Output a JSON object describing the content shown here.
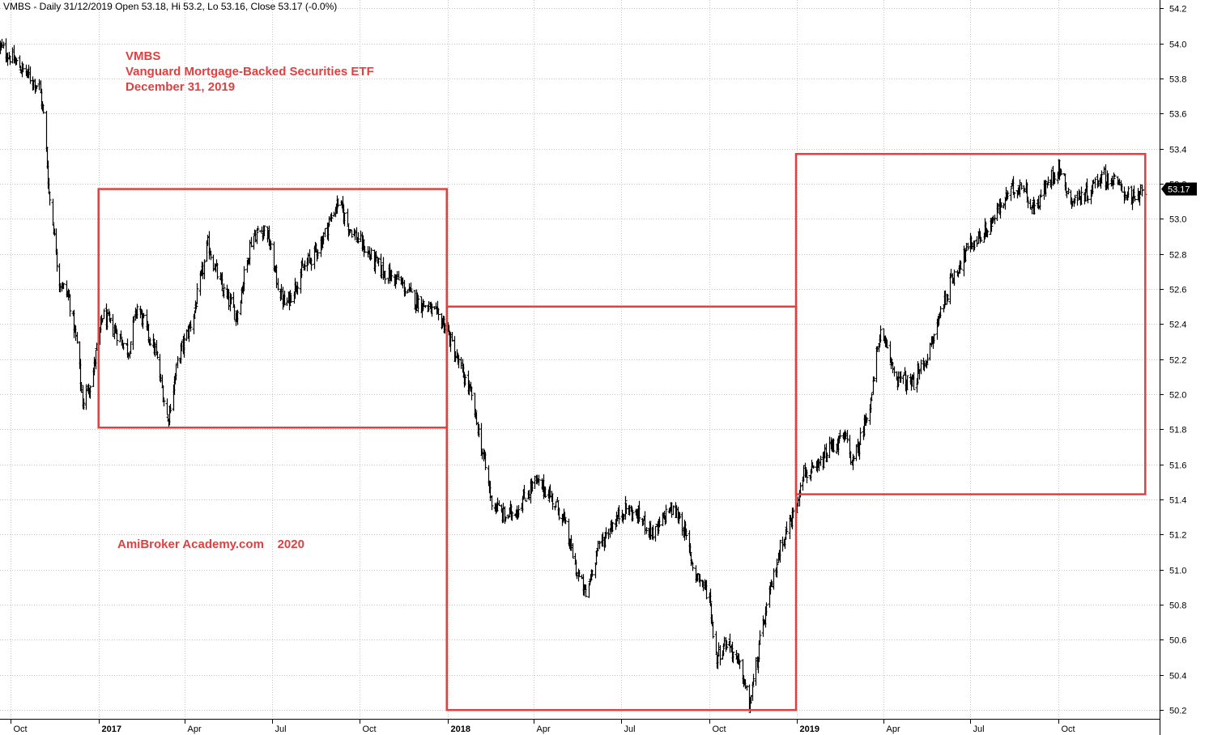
{
  "header": {
    "info": "VMBS - Daily 31/12/2019 Open 53.18, Hi 53.2, Lo 53.16, Close 53.17 (-0.0%)"
  },
  "annotations": {
    "symbol": "VMBS",
    "name": "Vanguard Mortgage-Backed Securities ETF",
    "date": "December 31, 2019",
    "watermark": "AmiBroker Academy.com    2020"
  },
  "colors": {
    "box": "#e04040",
    "annot_text": "#e04040",
    "bars": "#000000",
    "grid": "#c8c8c8",
    "last_price_bg": "#000000"
  },
  "chart_data": {
    "type": "ohlc",
    "ylim": [
      50.15,
      54.22
    ],
    "yticks": [
      "54.2",
      "54.0",
      "53.8",
      "53.6",
      "53.4",
      "53.2",
      "53.0",
      "52.8",
      "52.6",
      "52.4",
      "52.2",
      "52.0",
      "51.8",
      "51.6",
      "51.4",
      "51.2",
      "51.0",
      "50.8",
      "50.6",
      "50.4",
      "50.2"
    ],
    "xticks": [
      {
        "date": "2016-10-01",
        "label": "Oct",
        "bold": false
      },
      {
        "date": "2017-01-01",
        "label": "2017",
        "bold": true
      },
      {
        "date": "2017-04-01",
        "label": "Apr",
        "bold": false
      },
      {
        "date": "2017-07-01",
        "label": "Jul",
        "bold": false
      },
      {
        "date": "2017-10-01",
        "label": "Oct",
        "bold": false
      },
      {
        "date": "2018-01-01",
        "label": "2018",
        "bold": true
      },
      {
        "date": "2018-04-01",
        "label": "Apr",
        "bold": false
      },
      {
        "date": "2018-07-01",
        "label": "Jul",
        "bold": false
      },
      {
        "date": "2018-10-01",
        "label": "Oct",
        "bold": false
      },
      {
        "date": "2019-01-01",
        "label": "2019",
        "bold": true
      },
      {
        "date": "2019-04-01",
        "label": "Apr",
        "bold": false
      },
      {
        "date": "2019-07-01",
        "label": "Jul",
        "bold": false
      },
      {
        "date": "2019-10-01",
        "label": "Oct",
        "bold": false
      }
    ],
    "last_price": {
      "value": 53.17,
      "label": "53.17"
    },
    "price_path": [
      [
        "2016-09-20",
        53.98
      ],
      [
        "2016-10-01",
        53.92
      ],
      [
        "2016-10-15",
        53.84
      ],
      [
        "2016-10-31",
        53.75
      ],
      [
        "2016-11-05",
        53.55
      ],
      [
        "2016-11-10",
        53.15
      ],
      [
        "2016-11-15",
        52.95
      ],
      [
        "2016-11-20",
        52.65
      ],
      [
        "2016-12-01",
        52.55
      ],
      [
        "2016-12-10",
        52.25
      ],
      [
        "2016-12-15",
        51.95
      ],
      [
        "2016-12-25",
        52.1
      ],
      [
        "2017-01-05",
        52.45
      ],
      [
        "2017-01-20",
        52.35
      ],
      [
        "2017-02-01",
        52.25
      ],
      [
        "2017-02-10",
        52.5
      ],
      [
        "2017-03-01",
        52.25
      ],
      [
        "2017-03-14",
        51.85
      ],
      [
        "2017-03-25",
        52.2
      ],
      [
        "2017-04-10",
        52.45
      ],
      [
        "2017-04-25",
        52.85
      ],
      [
        "2017-05-10",
        52.6
      ],
      [
        "2017-05-25",
        52.45
      ],
      [
        "2017-06-10",
        52.9
      ],
      [
        "2017-06-25",
        52.95
      ],
      [
        "2017-07-08",
        52.6
      ],
      [
        "2017-07-15",
        52.5
      ],
      [
        "2017-08-01",
        52.7
      ],
      [
        "2017-08-20",
        52.85
      ],
      [
        "2017-09-08",
        53.1
      ],
      [
        "2017-09-20",
        52.95
      ],
      [
        "2017-10-10",
        52.8
      ],
      [
        "2017-10-25",
        52.7
      ],
      [
        "2017-11-10",
        52.65
      ],
      [
        "2017-11-25",
        52.55
      ],
      [
        "2017-12-10",
        52.5
      ],
      [
        "2017-12-29",
        52.4
      ],
      [
        "2018-01-10",
        52.2
      ],
      [
        "2018-01-25",
        52.0
      ],
      [
        "2018-02-05",
        51.7
      ],
      [
        "2018-02-15",
        51.4
      ],
      [
        "2018-03-01",
        51.3
      ],
      [
        "2018-03-15",
        51.35
      ],
      [
        "2018-04-01",
        51.5
      ],
      [
        "2018-04-15",
        51.45
      ],
      [
        "2018-05-01",
        51.3
      ],
      [
        "2018-05-15",
        51.0
      ],
      [
        "2018-05-25",
        50.85
      ],
      [
        "2018-06-05",
        51.1
      ],
      [
        "2018-06-20",
        51.25
      ],
      [
        "2018-07-05",
        51.35
      ],
      [
        "2018-07-20",
        51.3
      ],
      [
        "2018-08-05",
        51.2
      ],
      [
        "2018-08-20",
        51.35
      ],
      [
        "2018-09-01",
        51.3
      ],
      [
        "2018-09-15",
        51.0
      ],
      [
        "2018-10-01",
        50.85
      ],
      [
        "2018-10-08",
        50.5
      ],
      [
        "2018-10-20",
        50.6
      ],
      [
        "2018-11-05",
        50.4
      ],
      [
        "2018-11-12",
        50.22
      ],
      [
        "2018-11-25",
        50.65
      ],
      [
        "2018-12-05",
        50.9
      ],
      [
        "2018-12-15",
        51.15
      ],
      [
        "2018-12-31",
        51.35
      ],
      [
        "2019-01-05",
        51.55
      ],
      [
        "2019-01-20",
        51.55
      ],
      [
        "2019-02-05",
        51.7
      ],
      [
        "2019-02-20",
        51.75
      ],
      [
        "2019-03-01",
        51.6
      ],
      [
        "2019-03-20",
        52.0
      ],
      [
        "2019-03-28",
        52.35
      ],
      [
        "2019-04-15",
        52.1
      ],
      [
        "2019-05-01",
        52.05
      ],
      [
        "2019-05-20",
        52.25
      ],
      [
        "2019-06-01",
        52.5
      ],
      [
        "2019-06-15",
        52.7
      ],
      [
        "2019-07-01",
        52.85
      ],
      [
        "2019-07-20",
        52.95
      ],
      [
        "2019-08-10",
        53.15
      ],
      [
        "2019-08-25",
        53.2
      ],
      [
        "2019-09-05",
        53.05
      ],
      [
        "2019-09-25",
        53.25
      ],
      [
        "2019-10-01",
        53.3
      ],
      [
        "2019-10-15",
        53.1
      ],
      [
        "2019-11-01",
        53.15
      ],
      [
        "2019-11-15",
        53.25
      ],
      [
        "2019-12-01",
        53.2
      ],
      [
        "2019-12-20",
        53.1
      ],
      [
        "2019-12-31",
        53.17
      ]
    ],
    "boxes": [
      {
        "x1": "2017-01-01",
        "x2": "2017-12-31",
        "y_top": 53.17,
        "y_bottom": 51.81
      },
      {
        "x1": "2017-12-31",
        "x2": "2018-12-31",
        "y_top": 52.5,
        "y_bottom": 50.2
      },
      {
        "x1": "2018-12-31",
        "x2": "2019-12-31",
        "y_top": 53.37,
        "y_bottom": 51.43
      }
    ]
  }
}
